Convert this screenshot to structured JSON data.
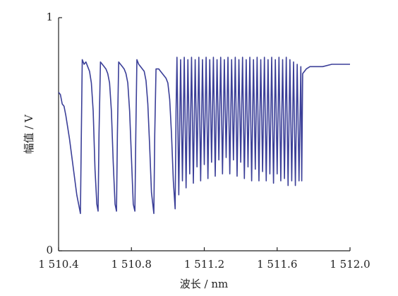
{
  "chart_data": {
    "type": "line",
    "x_label": "波长 / nm",
    "y_label": "幅值 / V",
    "xlim": [
      1510.4,
      1512.0
    ],
    "xticks": [
      {
        "value": 1510.4,
        "label": "1 510.4"
      },
      {
        "value": 1510.8,
        "label": "1 510.8"
      },
      {
        "value": 1511.2,
        "label": "1 511.2"
      },
      {
        "value": 1511.6,
        "label": "1 511.6"
      },
      {
        "value": 1512.0,
        "label": "1 512.0"
      }
    ],
    "ylim": [
      0,
      1
    ],
    "yticks": [
      0,
      1
    ],
    "grid": false,
    "x": [
      1510.4,
      1510.41,
      1510.42,
      1510.43,
      1510.44,
      1510.45,
      1510.46,
      1510.47,
      1510.48,
      1510.49,
      1510.5,
      1510.51,
      1510.52,
      1510.525,
      1510.53,
      1510.54,
      1510.55,
      1510.56,
      1510.57,
      1510.58,
      1510.59,
      1510.6,
      1510.61,
      1510.617,
      1510.622,
      1510.63,
      1510.64,
      1510.65,
      1510.66,
      1510.67,
      1510.68,
      1510.69,
      1510.7,
      1510.71,
      1510.718,
      1510.723,
      1510.73,
      1510.74,
      1510.75,
      1510.76,
      1510.77,
      1510.78,
      1510.79,
      1510.8,
      1510.81,
      1510.819,
      1510.824,
      1510.83,
      1510.84,
      1510.85,
      1510.86,
      1510.87,
      1510.88,
      1510.89,
      1510.9,
      1510.91,
      1510.923,
      1510.928,
      1510.935,
      1510.95,
      1510.97,
      1510.99,
      1511.0,
      1511.01,
      1511.02,
      1511.03,
      1511.04,
      1511.045,
      1511.05,
      1511.06,
      1511.07,
      1511.08,
      1511.09,
      1511.1,
      1511.11,
      1511.12,
      1511.13,
      1511.14,
      1511.15,
      1511.16,
      1511.17,
      1511.18,
      1511.19,
      1511.2,
      1511.21,
      1511.22,
      1511.23,
      1511.24,
      1511.25,
      1511.26,
      1511.27,
      1511.28,
      1511.29,
      1511.3,
      1511.31,
      1511.32,
      1511.33,
      1511.34,
      1511.35,
      1511.36,
      1511.37,
      1511.38,
      1511.39,
      1511.4,
      1511.41,
      1511.42,
      1511.43,
      1511.44,
      1511.45,
      1511.46,
      1511.47,
      1511.48,
      1511.49,
      1511.5,
      1511.51,
      1511.52,
      1511.53,
      1511.54,
      1511.55,
      1511.56,
      1511.57,
      1511.58,
      1511.59,
      1511.6,
      1511.61,
      1511.62,
      1511.63,
      1511.64,
      1511.65,
      1511.66,
      1511.67,
      1511.68,
      1511.69,
      1511.7,
      1511.71,
      1511.72,
      1511.73,
      1511.735,
      1511.74,
      1511.76,
      1511.78,
      1511.8,
      1511.85,
      1511.9,
      1511.95,
      1512.0
    ],
    "series": [
      {
        "color": "#3b3f98",
        "values": [
          0.68,
          0.67,
          0.63,
          0.62,
          0.58,
          0.53,
          0.48,
          0.42,
          0.36,
          0.3,
          0.24,
          0.2,
          0.16,
          0.5,
          0.82,
          0.8,
          0.81,
          0.79,
          0.77,
          0.72,
          0.6,
          0.35,
          0.2,
          0.17,
          0.5,
          0.81,
          0.8,
          0.79,
          0.78,
          0.76,
          0.72,
          0.6,
          0.38,
          0.2,
          0.17,
          0.5,
          0.81,
          0.8,
          0.79,
          0.78,
          0.76,
          0.72,
          0.6,
          0.4,
          0.2,
          0.17,
          0.5,
          0.82,
          0.8,
          0.79,
          0.78,
          0.77,
          0.73,
          0.63,
          0.45,
          0.25,
          0.16,
          0.5,
          0.78,
          0.78,
          0.76,
          0.74,
          0.72,
          0.65,
          0.5,
          0.3,
          0.18,
          0.6,
          0.83,
          0.24,
          0.82,
          0.3,
          0.83,
          0.27,
          0.82,
          0.33,
          0.83,
          0.29,
          0.82,
          0.36,
          0.83,
          0.3,
          0.82,
          0.37,
          0.83,
          0.31,
          0.82,
          0.38,
          0.83,
          0.32,
          0.82,
          0.39,
          0.83,
          0.33,
          0.82,
          0.4,
          0.83,
          0.33,
          0.82,
          0.39,
          0.83,
          0.32,
          0.82,
          0.38,
          0.83,
          0.31,
          0.82,
          0.36,
          0.83,
          0.3,
          0.82,
          0.35,
          0.83,
          0.3,
          0.82,
          0.34,
          0.83,
          0.3,
          0.82,
          0.33,
          0.83,
          0.29,
          0.82,
          0.33,
          0.83,
          0.3,
          0.82,
          0.31,
          0.83,
          0.28,
          0.82,
          0.3,
          0.81,
          0.28,
          0.8,
          0.3,
          0.79,
          0.3,
          0.76,
          0.78,
          0.79,
          0.79,
          0.79,
          0.8,
          0.8,
          0.8
        ]
      }
    ]
  }
}
